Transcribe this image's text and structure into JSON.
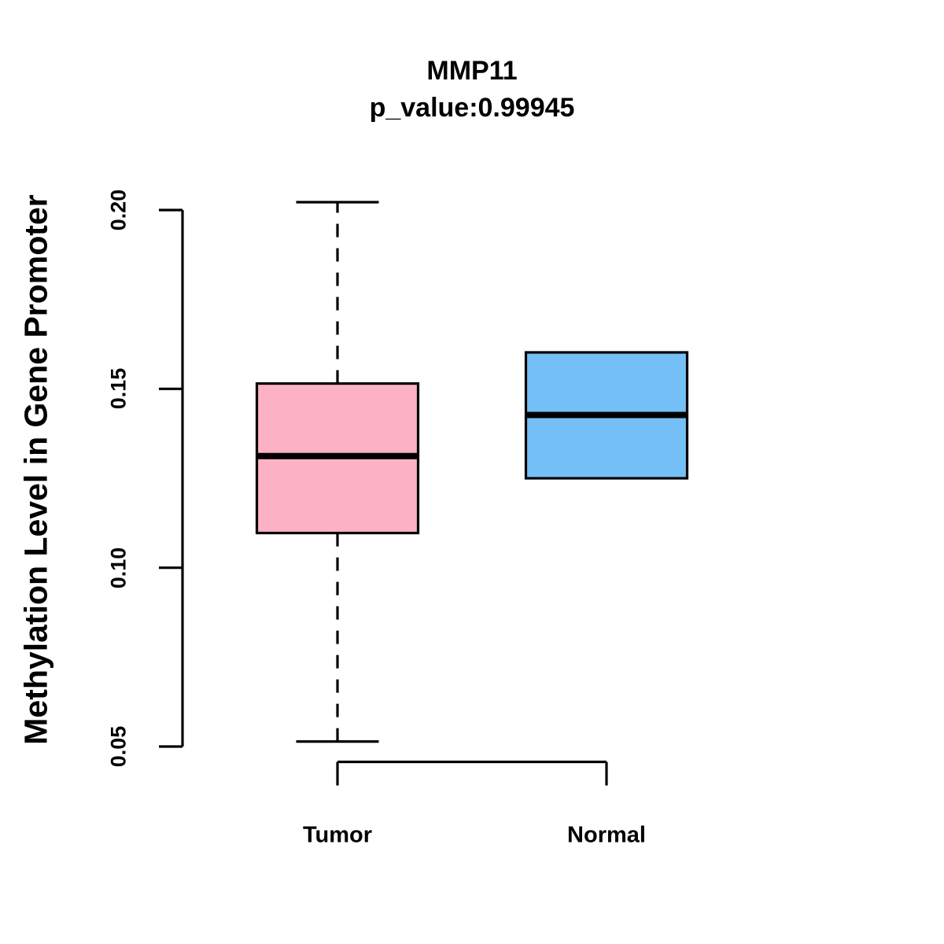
{
  "figure": {
    "title": "MMP11",
    "subtitle": "p_value:0.99945",
    "y_axis_label": "Methylation Level in Gene Promoter"
  },
  "chart_data": {
    "type": "boxplot",
    "title": "MMP11",
    "subtitle": "p_value:0.99945",
    "ylabel": "Methylation Level in Gene Promoter",
    "xlabel": "",
    "ylim": [
      0.05,
      0.2
    ],
    "yticks": [
      0.05,
      0.1,
      0.15,
      0.2
    ],
    "ytick_labels": [
      "0.05",
      "0.10",
      "0.15",
      "0.20"
    ],
    "categories": [
      "Tumor",
      "Normal"
    ],
    "grid": false,
    "legend_position": "none",
    "colors": {
      "tumor_fill": "#FCB1C4",
      "normal_fill": "#74BFF6",
      "stroke": "#000000",
      "background": "#FFFFFF"
    },
    "series": [
      {
        "name": "Tumor",
        "fill": "#FCB1C4",
        "whisker_low": 0.0514,
        "q1": 0.1097,
        "median": 0.1312,
        "q3": 0.1515,
        "whisker_high": 0.2022,
        "whisker_style": "dashed",
        "outliers": []
      },
      {
        "name": "Normal",
        "fill": "#74BFF6",
        "whisker_low": 0.125,
        "q1": 0.125,
        "median": 0.1427,
        "q3": 0.1602,
        "whisker_high": 0.1602,
        "whisker_style": "none",
        "outliers": []
      }
    ]
  }
}
